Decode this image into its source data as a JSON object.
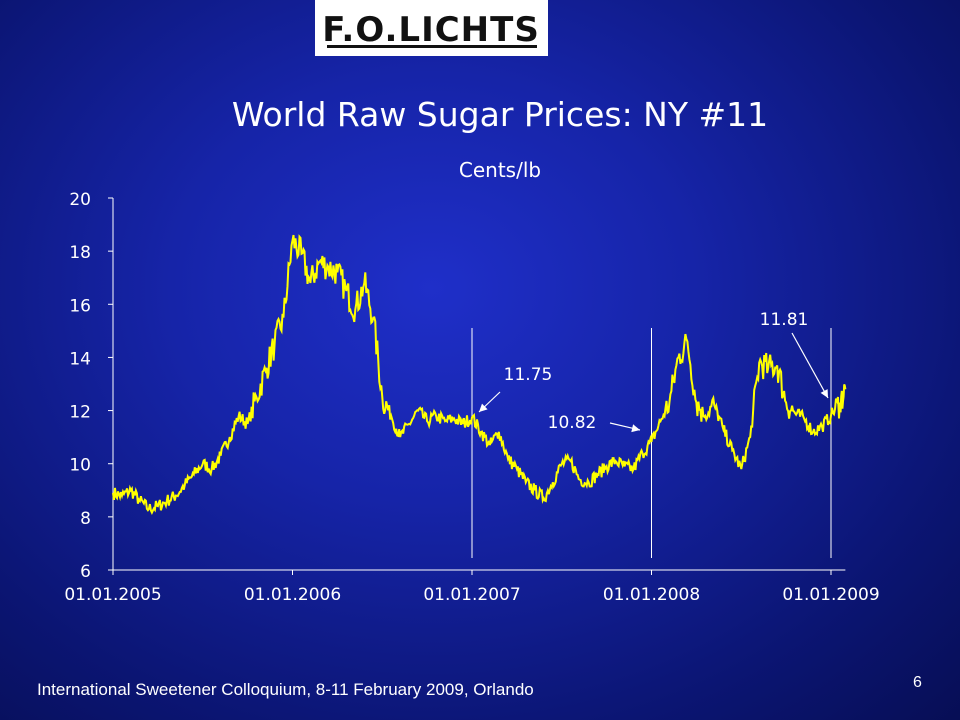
{
  "logo": {
    "text": "F.O.LICHTS"
  },
  "slide": {
    "footer": "International Sweetener Colloquium, 8-11 February 2009, Orlando",
    "page_number": "6"
  },
  "chart_data": {
    "type": "line",
    "title": "World Raw Sugar Prices: NY #11",
    "subtitle": "Cents/lb",
    "xlabel": "",
    "ylabel": "",
    "ylim": [
      6,
      20
    ],
    "yticks": [
      "6",
      "8",
      "10",
      "12",
      "14",
      "16",
      "18",
      "20"
    ],
    "xticks": [
      "01.01.2005",
      "01.01.2006",
      "01.01.2007",
      "01.01.2008",
      "01.01.2009"
    ],
    "xlim_years": [
      2005.0,
      2009.08
    ],
    "line_color": "#ffff00",
    "grid": false,
    "series": [
      {
        "x": [
          2005.0,
          2005.05,
          2005.1,
          2005.15,
          2005.2,
          2005.25,
          2005.3,
          2005.35,
          2005.4,
          2005.45,
          2005.5,
          2005.55,
          2005.6,
          2005.65,
          2005.7,
          2005.75,
          2005.8,
          2005.85,
          2005.9,
          2005.95,
          2006.0,
          2006.05,
          2006.1,
          2006.15,
          2006.2,
          2006.25,
          2006.3,
          2006.35,
          2006.4,
          2006.45,
          2006.5,
          2006.55,
          2006.6,
          2006.65,
          2006.7,
          2006.75,
          2006.8,
          2006.85,
          2006.9,
          2006.95,
          2007.0,
          2007.05,
          2007.1,
          2007.15,
          2007.2,
          2007.25,
          2007.3,
          2007.35,
          2007.4,
          2007.45,
          2007.5,
          2007.55,
          2007.6,
          2007.65,
          2007.7,
          2007.75,
          2007.8,
          2007.85,
          2007.9,
          2007.95,
          2008.0,
          2008.05,
          2008.1,
          2008.15,
          2008.2,
          2008.25,
          2008.3,
          2008.35,
          2008.4,
          2008.45,
          2008.5,
          2008.55,
          2008.6,
          2008.65,
          2008.7,
          2008.75,
          2008.8,
          2008.85,
          2008.9,
          2008.95,
          2009.0,
          2009.05,
          2009.08
        ],
        "values": [
          8.9,
          8.8,
          9.0,
          8.6,
          8.3,
          8.4,
          8.6,
          8.8,
          9.2,
          9.6,
          10.0,
          9.8,
          10.3,
          11.0,
          11.8,
          11.5,
          12.5,
          13.5,
          14.5,
          15.5,
          18.4,
          17.9,
          16.8,
          17.6,
          17.4,
          17.2,
          16.5,
          15.8,
          16.8,
          15.5,
          12.5,
          11.8,
          11.0,
          11.5,
          12.0,
          11.6,
          11.8,
          11.6,
          11.7,
          11.5,
          11.75,
          11.2,
          10.7,
          11.2,
          10.2,
          9.8,
          9.3,
          9.0,
          8.7,
          9.3,
          10.0,
          10.1,
          9.4,
          9.3,
          9.6,
          9.9,
          10.1,
          9.9,
          9.8,
          10.4,
          10.82,
          11.6,
          12.3,
          14.0,
          14.6,
          12.3,
          11.8,
          12.2,
          11.3,
          10.5,
          9.8,
          11.0,
          13.8,
          13.6,
          13.7,
          12.3,
          11.9,
          11.7,
          11.2,
          11.4,
          11.81,
          12.3,
          12.8
        ]
      }
    ],
    "annotations": [
      {
        "label": "11.75",
        "x": 2007.0,
        "y": 11.75
      },
      {
        "label": "10.82",
        "x": 2008.0,
        "y": 10.82
      },
      {
        "label": "11.81",
        "x": 2009.0,
        "y": 11.81
      }
    ],
    "vertical_markers": [
      2007.0,
      2008.0,
      2009.0
    ]
  }
}
